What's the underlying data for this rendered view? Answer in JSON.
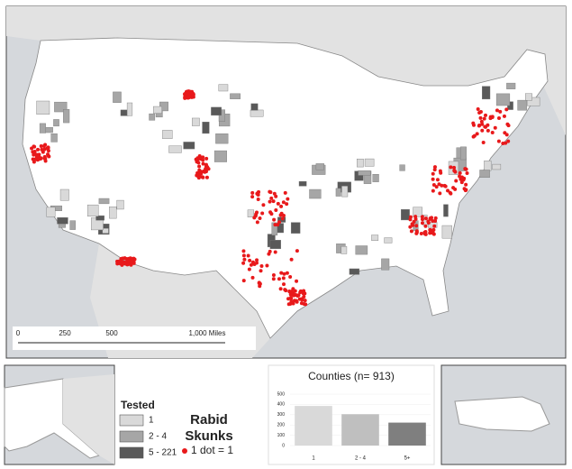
{
  "map": {
    "scale_bar": {
      "labels": [
        "0",
        "250",
        "500",
        "1,000 Miles"
      ]
    },
    "legend": {
      "title": "Tested",
      "items": [
        "1",
        "2 - 4",
        "5 - 221"
      ],
      "colors": [
        "#d9d9d9",
        "#a6a6a6",
        "#595959"
      ]
    },
    "dot_legend": {
      "title": [
        "Rabid",
        "Skunks"
      ],
      "label": "1 dot = 1",
      "color": "#e8191b"
    }
  },
  "chart_data": {
    "type": "bar",
    "title": "Counties (n= 913)",
    "categories": [
      "1",
      "2 - 4",
      "5+"
    ],
    "values": [
      385,
      305,
      223
    ],
    "colors": [
      "#d9d9d9",
      "#bfbfbf",
      "#7f7f7f"
    ],
    "ylim": [
      0,
      500
    ],
    "yticks": [
      0,
      100,
      200,
      300,
      400,
      500
    ]
  }
}
